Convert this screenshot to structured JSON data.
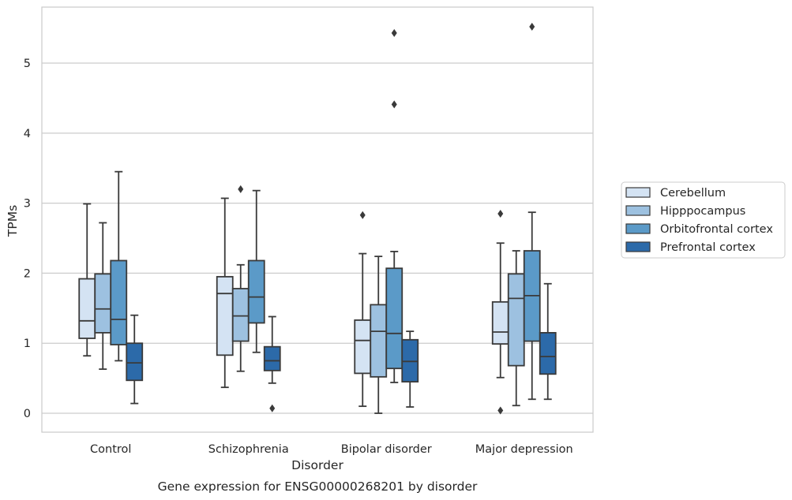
{
  "chart_data": {
    "type": "box",
    "title": "Gene expression for ENSG00000268201 by disorder",
    "xlabel": "Disorder",
    "ylabel": "TPMs",
    "ylim": [
      -0.27,
      5.8
    ],
    "yticks": [
      0,
      1,
      2,
      3,
      4,
      5
    ],
    "grid": "horizontal",
    "legend_position": "right",
    "categories": [
      "Control",
      "Schizophrenia",
      "Bipolar disorder",
      "Major depression"
    ],
    "series": [
      {
        "name": "Cerebellum",
        "color": "#d4e3f3",
        "boxes": [
          {
            "whisker_low": 0.82,
            "q1": 1.07,
            "median": 1.32,
            "q3": 1.92,
            "whisker_high": 2.99,
            "outliers": []
          },
          {
            "whisker_low": 0.37,
            "q1": 0.83,
            "median": 1.71,
            "q3": 1.95,
            "whisker_high": 3.07,
            "outliers": []
          },
          {
            "whisker_low": 0.1,
            "q1": 0.57,
            "median": 1.04,
            "q3": 1.33,
            "whisker_high": 2.28,
            "outliers": [
              2.83
            ]
          },
          {
            "whisker_low": 0.51,
            "q1": 0.99,
            "median": 1.16,
            "q3": 1.59,
            "whisker_high": 2.43,
            "outliers": [
              2.85,
              0.04
            ]
          }
        ]
      },
      {
        "name": "Hipppocampus",
        "color": "#9dc1e0",
        "boxes": [
          {
            "whisker_low": 0.63,
            "q1": 1.15,
            "median": 1.49,
            "q3": 1.99,
            "whisker_high": 2.72,
            "outliers": []
          },
          {
            "whisker_low": 0.6,
            "q1": 1.03,
            "median": 1.39,
            "q3": 1.78,
            "whisker_high": 2.12,
            "outliers": [
              3.2
            ]
          },
          {
            "whisker_low": 0.0,
            "q1": 0.52,
            "median": 1.17,
            "q3": 1.55,
            "whisker_high": 2.24,
            "outliers": []
          },
          {
            "whisker_low": 0.11,
            "q1": 0.68,
            "median": 1.64,
            "q3": 1.99,
            "whisker_high": 2.32,
            "outliers": []
          }
        ]
      },
      {
        "name": "Orbitofrontal cortex",
        "color": "#5b9ac8",
        "boxes": [
          {
            "whisker_low": 0.75,
            "q1": 0.98,
            "median": 1.34,
            "q3": 2.18,
            "whisker_high": 3.45,
            "outliers": []
          },
          {
            "whisker_low": 0.87,
            "q1": 1.29,
            "median": 1.66,
            "q3": 2.18,
            "whisker_high": 3.18,
            "outliers": []
          },
          {
            "whisker_low": 0.44,
            "q1": 0.64,
            "median": 1.14,
            "q3": 2.07,
            "whisker_high": 2.31,
            "outliers": [
              5.43,
              4.41
            ]
          },
          {
            "whisker_low": 0.2,
            "q1": 1.03,
            "median": 1.68,
            "q3": 2.32,
            "whisker_high": 2.87,
            "outliers": [
              5.52
            ]
          }
        ]
      },
      {
        "name": "Prefrontal cortex",
        "color": "#2c6aa9",
        "boxes": [
          {
            "whisker_low": 0.14,
            "q1": 0.47,
            "median": 0.72,
            "q3": 1.0,
            "whisker_high": 1.4,
            "outliers": []
          },
          {
            "whisker_low": 0.43,
            "q1": 0.61,
            "median": 0.75,
            "q3": 0.95,
            "whisker_high": 1.38,
            "outliers": [
              0.07
            ]
          },
          {
            "whisker_low": 0.09,
            "q1": 0.45,
            "median": 0.74,
            "q3": 1.05,
            "whisker_high": 1.17,
            "outliers": []
          },
          {
            "whisker_low": 0.2,
            "q1": 0.56,
            "median": 0.81,
            "q3": 1.15,
            "whisker_high": 1.85,
            "outliers": []
          }
        ]
      }
    ]
  },
  "colors": {
    "edge": "#3a3a3a",
    "grid": "#cccccc",
    "frame": "#cccccc"
  }
}
